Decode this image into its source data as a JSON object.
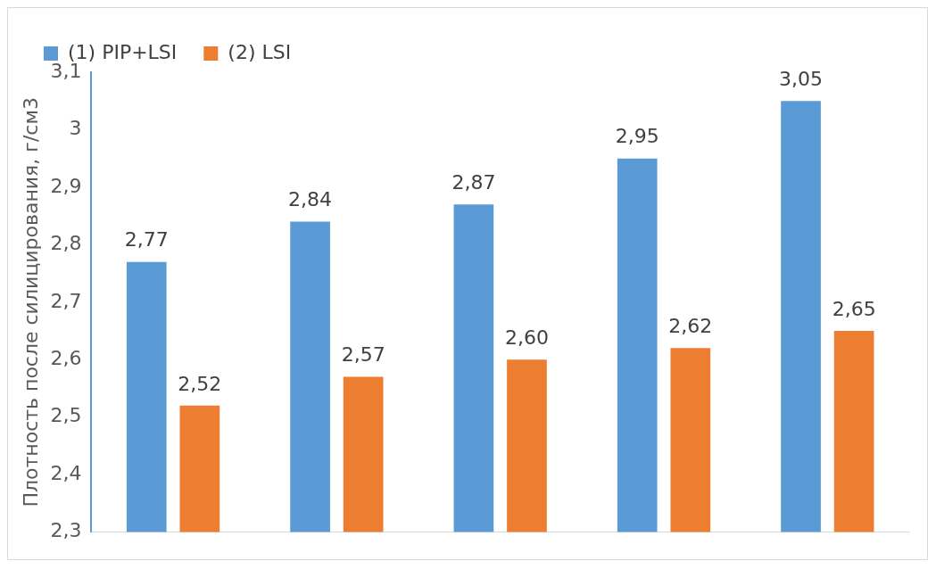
{
  "chart_data": {
    "type": "bar",
    "ylabel": "Плотность после силицирования, г/см3",
    "categories": [
      null,
      null,
      null,
      null,
      null
    ],
    "series": [
      {
        "name": "(1) PIP+LSI",
        "color": "#5b9bd5",
        "values": [
          2.77,
          2.84,
          2.87,
          2.95,
          3.05
        ],
        "value_labels": [
          "2,77",
          "2,84",
          "2,87",
          "2,95",
          "3,05"
        ]
      },
      {
        "name": "(2) LSI",
        "color": "#ed7d31",
        "values": [
          2.52,
          2.57,
          2.6,
          2.62,
          2.65
        ],
        "value_labels": [
          "2,52",
          "2,57",
          "2,60",
          "2,62",
          "2,65"
        ]
      }
    ],
    "ylim": [
      2.3,
      3.1
    ],
    "yticks": [
      {
        "value": 2.3,
        "label": "2,3"
      },
      {
        "value": 2.4,
        "label": "2,4"
      },
      {
        "value": 2.5,
        "label": "2,5"
      },
      {
        "value": 2.6,
        "label": "2,6"
      },
      {
        "value": 2.7,
        "label": "2,7"
      },
      {
        "value": 2.8,
        "label": "2,8"
      },
      {
        "value": 2.9,
        "label": "2,9"
      },
      {
        "value": 3,
        "label": "3"
      },
      {
        "value": 3.1,
        "label": "3,1"
      }
    ],
    "grid": false,
    "legend": "top left"
  }
}
